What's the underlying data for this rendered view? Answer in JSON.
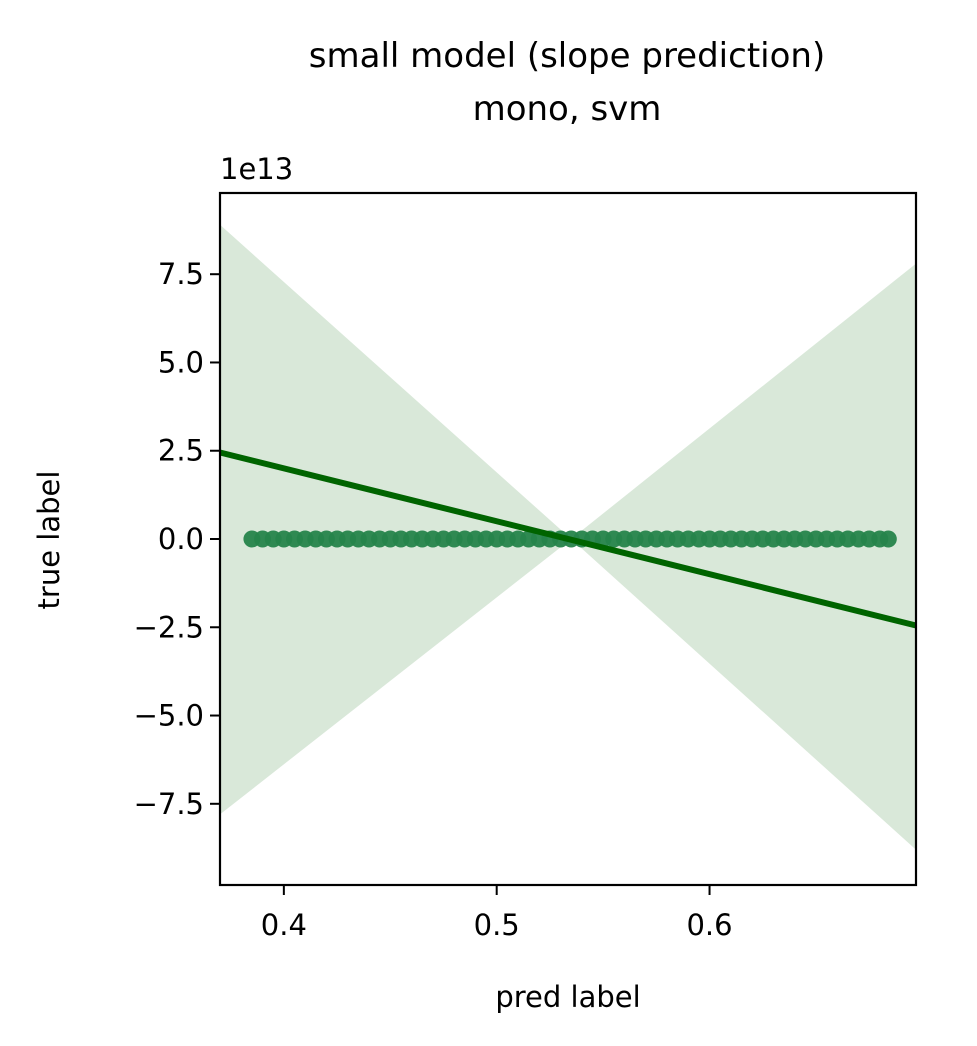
{
  "chart_data": {
    "type": "scatter",
    "title": "small model (slope prediction)",
    "subtitle": "mono, svm",
    "xlabel": "pred label",
    "ylabel": "true label",
    "y_offset_label": "1e13",
    "xlim": [
      0.37,
      0.697
    ],
    "ylim": [
      -9.8,
      9.8
    ],
    "y_scale_factor": 10000000000000.0,
    "x_ticks": [
      0.4,
      0.5,
      0.6
    ],
    "x_tick_labels": [
      "0.4",
      "0.5",
      "0.6"
    ],
    "y_ticks": [
      7.5,
      5.0,
      2.5,
      0.0,
      -2.5,
      -5.0,
      -7.5
    ],
    "y_tick_labels": [
      "7.5",
      "5.0",
      "2.5",
      "0.0",
      "−2.5",
      "−5.0",
      "−7.5"
    ],
    "grid": false,
    "series": [
      {
        "kind": "scatter",
        "color": "#26844b",
        "x": [
          0.385,
          0.39,
          0.395,
          0.4,
          0.405,
          0.41,
          0.415,
          0.42,
          0.425,
          0.43,
          0.435,
          0.44,
          0.445,
          0.45,
          0.455,
          0.46,
          0.465,
          0.47,
          0.475,
          0.48,
          0.485,
          0.49,
          0.495,
          0.5,
          0.505,
          0.51,
          0.515,
          0.52,
          0.525,
          0.53,
          0.535,
          0.54,
          0.545,
          0.55,
          0.555,
          0.56,
          0.565,
          0.57,
          0.575,
          0.58,
          0.585,
          0.59,
          0.595,
          0.6,
          0.605,
          0.61,
          0.615,
          0.62,
          0.625,
          0.63,
          0.635,
          0.64,
          0.645,
          0.65,
          0.655,
          0.66,
          0.665,
          0.67,
          0.675,
          0.68,
          0.684
        ],
        "y": [
          0.0,
          0.0,
          0.0,
          0.0,
          0.0,
          0.0,
          0.0,
          0.0,
          0.0,
          0.0,
          0.0,
          0.0,
          0.0,
          0.0,
          0.0,
          0.0,
          0.0,
          0.0,
          0.0,
          0.0,
          0.0,
          0.0,
          0.0,
          0.0,
          0.0,
          0.0,
          0.0,
          0.0,
          0.0,
          0.0,
          0.0,
          0.0,
          0.0,
          0.0,
          0.0,
          0.0,
          0.0,
          0.0,
          0.0,
          0.0,
          0.0,
          0.0,
          0.0,
          0.0,
          0.0,
          0.0,
          0.0,
          0.0,
          0.0,
          0.0,
          0.0,
          0.0,
          0.0,
          0.0,
          0.0,
          0.0,
          0.0,
          0.0,
          0.0,
          0.0,
          0.0
        ]
      },
      {
        "kind": "regression-line",
        "color": "#006400",
        "x": [
          0.37,
          0.697
        ],
        "y": [
          2.45,
          -2.45
        ]
      },
      {
        "kind": "confidence-band",
        "color": "#d9e8d9",
        "x": [
          0.37,
          0.535,
          0.697
        ],
        "upper": [
          8.9,
          0.0,
          7.8
        ],
        "lower": [
          -7.8,
          0.0,
          -8.8
        ]
      }
    ]
  }
}
